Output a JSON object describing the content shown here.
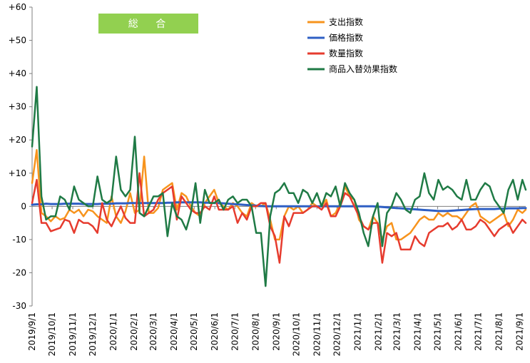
{
  "chart_data": {
    "type": "line",
    "title": "総 合",
    "title_box_color": "#92d050",
    "xlabel": "",
    "ylabel": "",
    "ylim": [
      -30,
      60
    ],
    "y_ticks": [
      -30,
      -20,
      -10,
      0,
      10,
      20,
      30,
      40,
      50,
      60
    ],
    "y_tick_labels": [
      "-30",
      "-20",
      "-10",
      "0",
      "+10",
      "+20",
      "+30",
      "+40",
      "+50",
      "+60"
    ],
    "x_range": [
      "2019-09-01",
      "2021-09-10"
    ],
    "x_tick_labels": [
      "2019/9/1",
      "2019/10/1",
      "2019/11/1",
      "2019/12/1",
      "2020/1/1",
      "2020/2/1",
      "2020/3/1",
      "2020/4/1",
      "2020/5/1",
      "2020/6/1",
      "2020/7/1",
      "2020/8/1",
      "2020/9/1",
      "2020/10/1",
      "2020/11/1",
      "2020/12/1",
      "2021/1/1",
      "2021/2/1",
      "2021/3/1",
      "2021/4/1",
      "2021/5/1",
      "2021/6/1",
      "2021/7/1",
      "2021/8/1",
      "2021/9/1"
    ],
    "grid": false,
    "legend_position": "top-right",
    "x": [
      "2019-09-01",
      "2019-09-08",
      "2019-09-15",
      "2019-09-22",
      "2019-09-29",
      "2019-10-06",
      "2019-10-13",
      "2019-10-20",
      "2019-10-27",
      "2019-11-03",
      "2019-11-10",
      "2019-11-17",
      "2019-11-24",
      "2019-12-01",
      "2019-12-08",
      "2019-12-15",
      "2019-12-22",
      "2019-12-29",
      "2020-01-05",
      "2020-01-12",
      "2020-01-19",
      "2020-01-26",
      "2020-02-02",
      "2020-02-09",
      "2020-02-16",
      "2020-02-23",
      "2020-03-01",
      "2020-03-08",
      "2020-03-15",
      "2020-03-22",
      "2020-03-29",
      "2020-04-05",
      "2020-04-12",
      "2020-04-19",
      "2020-04-26",
      "2020-05-03",
      "2020-05-10",
      "2020-05-17",
      "2020-05-24",
      "2020-05-31",
      "2020-06-07",
      "2020-06-14",
      "2020-06-21",
      "2020-06-28",
      "2020-07-05",
      "2020-07-12",
      "2020-07-19",
      "2020-07-26",
      "2020-08-02",
      "2020-08-09",
      "2020-08-16",
      "2020-08-23",
      "2020-08-30",
      "2020-09-06",
      "2020-09-13",
      "2020-09-20",
      "2020-09-27",
      "2020-10-04",
      "2020-10-11",
      "2020-10-18",
      "2020-10-25",
      "2020-11-01",
      "2020-11-08",
      "2020-11-15",
      "2020-11-22",
      "2020-11-29",
      "2020-12-06",
      "2020-12-13",
      "2020-12-20",
      "2020-12-27",
      "2021-01-03",
      "2021-01-10",
      "2021-01-17",
      "2021-01-24",
      "2021-01-31",
      "2021-02-07",
      "2021-02-14",
      "2021-02-21",
      "2021-02-28",
      "2021-03-07",
      "2021-03-14",
      "2021-03-21",
      "2021-03-28",
      "2021-04-04",
      "2021-04-11",
      "2021-04-18",
      "2021-04-25",
      "2021-05-02",
      "2021-05-09",
      "2021-05-16",
      "2021-05-23",
      "2021-05-30",
      "2021-06-06",
      "2021-06-13",
      "2021-06-20",
      "2021-06-27",
      "2021-07-04",
      "2021-07-11",
      "2021-07-18",
      "2021-07-25",
      "2021-08-01",
      "2021-08-08",
      "2021-08-15",
      "2021-08-22",
      "2021-08-29",
      "2021-09-05",
      "2021-09-10"
    ],
    "series": [
      {
        "name": "支出指数",
        "color": "#f7941d",
        "values": [
          7,
          17,
          -2,
          -3,
          -4.5,
          -3,
          -4,
          -3.5,
          -1,
          -2,
          -1,
          -3,
          -1,
          -1.5,
          -3,
          -4,
          -5,
          3,
          -3,
          -5,
          -1.5,
          4,
          -2,
          -1,
          15,
          -2,
          -2,
          -0.5,
          5,
          6,
          7,
          -1,
          4,
          3,
          0,
          -2,
          -3,
          1,
          3,
          5,
          1,
          0,
          -1,
          1,
          0,
          -2,
          -3,
          1,
          0,
          0,
          1,
          -4,
          -10,
          -10,
          -3,
          0,
          -1,
          0,
          -2,
          -1,
          1,
          0,
          0,
          2,
          -3,
          -2,
          1,
          6,
          3,
          2,
          -4,
          -6,
          -7,
          -3,
          -5,
          -10,
          -6,
          -5,
          -10,
          -10,
          -9,
          -8,
          -6,
          -4,
          -3,
          -4,
          -4,
          -2,
          -3,
          -2,
          -3,
          -3,
          -4,
          -2,
          0,
          1,
          -3,
          -4,
          -5,
          -4,
          -3,
          -2,
          -6,
          -4,
          -1,
          -2,
          -1
        ],
        "_note_unused": ""
      },
      {
        "name": "価格指数",
        "color": "#2e5fc4",
        "values": [
          0.5,
          0.6,
          0.6,
          0.8,
          0.7,
          0.7,
          0.7,
          0.8,
          0.8,
          0.8,
          0.8,
          0.7,
          0.7,
          0.7,
          0.7,
          0.8,
          0.8,
          0.8,
          0.9,
          0.9,
          0.9,
          1.0,
          1.0,
          1.0,
          1.0,
          1.0,
          1.0,
          1.0,
          1.0,
          1.1,
          1.1,
          1.2,
          1.2,
          1.2,
          1.2,
          1.2,
          1.2,
          1.1,
          1.1,
          1.0,
          1.0,
          0.9,
          0.8,
          0.7,
          0.6,
          0.5,
          0.4,
          0.3,
          0.2,
          0.1,
          0.0,
          0.0,
          0.0,
          0.0,
          0.0,
          0.0,
          0.0,
          0.0,
          0.0,
          0.0,
          0.0,
          0.0,
          0.0,
          0.0,
          0.0,
          0.0,
          0.0,
          0.0,
          0.0,
          0.0,
          0.0,
          0.0,
          0.0,
          0.0,
          -0.1,
          -0.2,
          -0.3,
          -0.4,
          -0.5,
          -0.6,
          -0.7,
          -0.8,
          -0.9,
          -1.0,
          -1.1,
          -1.2,
          -1.3,
          -1.4,
          -1.4,
          -1.4,
          -1.3,
          -1.2,
          -1.1,
          -1.0,
          -0.9,
          -0.8,
          -0.8,
          -0.8,
          -0.8,
          -0.8,
          -0.7,
          -0.7,
          -0.6,
          -0.6,
          -0.6,
          -0.5,
          -0.5
        ]
      },
      {
        "name": "数量指数",
        "color": "#e63b2e",
        "values": [
          1,
          8,
          -5,
          -5,
          -7.5,
          -7,
          -6.5,
          -4,
          -4.5,
          -8,
          -4,
          -5,
          -5,
          -6,
          -8,
          1,
          -4,
          -6,
          -3,
          0,
          -3.5,
          -5,
          -5,
          10,
          -3,
          -2,
          -1,
          2,
          4,
          5,
          6,
          -4,
          3,
          1,
          -1,
          -2,
          -2,
          0,
          -1,
          3,
          -1,
          -1,
          -1,
          0,
          -5,
          -2,
          -4,
          0,
          0,
          1,
          1,
          -6,
          -9,
          -17,
          -3,
          -6,
          -2,
          -2,
          -2,
          -1,
          0,
          0,
          -1,
          1,
          -3,
          -3,
          0,
          4,
          3,
          0,
          -3,
          -6,
          -7,
          -5,
          -5,
          -17,
          -8,
          -9,
          -8,
          -13,
          -13,
          -13,
          -9,
          -11,
          -12,
          -8,
          -7,
          -6,
          -6,
          -5,
          -7,
          -6,
          -4,
          -7,
          -7,
          -6,
          -4,
          -5,
          -7,
          -9,
          -7,
          -6,
          -5,
          -8,
          -6,
          -4,
          -5
        ]
      },
      {
        "name": "商品入替効果指数",
        "color": "#1f7a45",
        "values": [
          18,
          36,
          3,
          -4,
          -3,
          -3,
          3,
          2,
          -1,
          6,
          2,
          1,
          0,
          0,
          9,
          2,
          1,
          2,
          15,
          5,
          3,
          5,
          21,
          -2,
          -3,
          0,
          3,
          3,
          4,
          -9,
          1,
          -3,
          -4,
          -7,
          -2,
          7,
          -5,
          5,
          1,
          1,
          2,
          -1,
          2,
          3,
          1,
          2,
          2,
          0,
          -8,
          -8,
          -24,
          -3,
          4,
          5,
          7,
          4,
          4,
          1,
          5,
          4,
          1,
          4,
          0,
          4,
          3,
          6,
          0,
          7,
          4,
          2,
          -2,
          -8,
          -12,
          -3,
          1,
          -12,
          -2,
          0,
          4,
          2,
          -1,
          -2,
          2,
          3,
          10,
          4,
          2,
          8,
          5,
          6,
          5,
          3,
          2,
          8,
          2,
          2,
          5,
          7,
          6,
          2,
          0,
          -2,
          5,
          8,
          2,
          8,
          5
        ]
      }
    ]
  }
}
